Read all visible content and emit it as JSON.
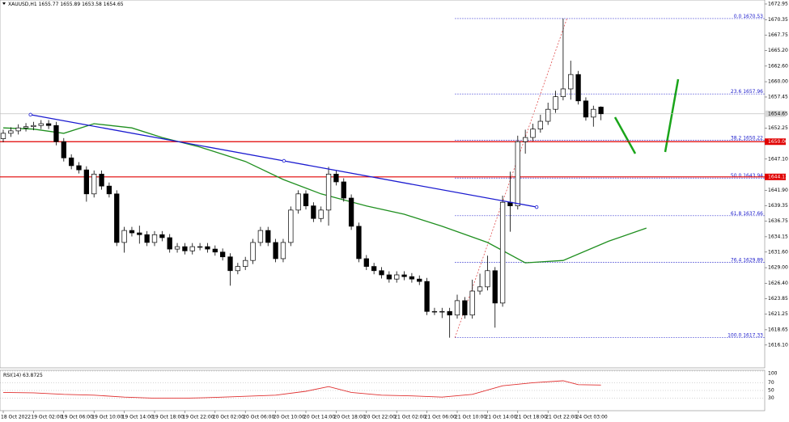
{
  "chart_data": {
    "type": "candlestick",
    "header": {
      "symbol": "XAUUSD,H1",
      "ohlc": [
        1655.77,
        1655.89,
        1653.58,
        1654.65
      ]
    },
    "categories": [
      "18 Oct 2022",
      null,
      null,
      null,
      "19 Oct 02:00",
      null,
      null,
      null,
      "19 Oct 06:00",
      null,
      null,
      null,
      "19 Oct 10:00",
      null,
      null,
      null,
      "19 Oct 14:00",
      null,
      null,
      null,
      "19 Oct 18:00",
      null,
      null,
      null,
      "19 Oct 22:00",
      null,
      null,
      null,
      "20 Oct 02:00",
      null,
      null,
      null,
      "20 Oct 06:00",
      null,
      null,
      null,
      "20 Oct 10:00",
      null,
      null,
      null,
      "20 Oct 14:00",
      null,
      null,
      null,
      "20 Oct 18:00",
      null,
      null,
      null,
      "20 Oct 22:00",
      null,
      null,
      null,
      "21 Oct 02:00",
      null,
      null,
      null,
      "21 Oct 06:00",
      null,
      null,
      null,
      "21 Oct 10:00",
      null,
      null,
      null,
      "21 Oct 14:00",
      null,
      null,
      null,
      "21 Oct 18:00",
      null,
      null,
      null,
      "21 Oct 22:00",
      null,
      null,
      null,
      "24 Oct 03:00",
      null,
      null,
      null
    ],
    "open": [
      1650.5,
      1651.4,
      1651.8,
      1652.3,
      1652.5,
      1652.7,
      1653.0,
      1652.7,
      1650.0,
      1647.3,
      1646.0,
      1645.3,
      1641.3,
      1644.6,
      1642.6,
      1641.3,
      1633.2,
      1635.2,
      1634.8,
      1634.5,
      1633.2,
      1634.5,
      1634.0,
      1632.1,
      1632.5,
      1631.8,
      1632.5,
      1632.5,
      1632.1,
      1631.6,
      1630.8,
      1628.5,
      1629.2,
      1630.2,
      1633.2,
      1635.2,
      1633.2,
      1630.5,
      1633.2,
      1638.6,
      1641.3,
      1639.3,
      1637.2,
      1638.6,
      1644.6,
      1643.3,
      1640.6,
      1635.9,
      1630.5,
      1629.2,
      1628.5,
      1627.8,
      1627.1,
      1627.8,
      1627.5,
      1627.1,
      1626.7,
      1621.7,
      1621.7,
      1621.7,
      1621.1,
      1623.5,
      1621.1,
      1625.1,
      1625.8,
      1628.5,
      1623.1,
      1639.9,
      1639.3,
      1650.0,
      1650.7,
      1652.1,
      1653.4,
      1655.4,
      1657.5,
      1658.8,
      1661.2,
      1656.8,
      1654.1,
      1655.77
    ],
    "high": [
      1652.0,
      1652.4,
      1652.9,
      1653.1,
      1653.3,
      1653.6,
      1653.6,
      1653.3,
      1650.6,
      1647.9,
      1646.6,
      1645.9,
      1645.2,
      1645.2,
      1643.2,
      1641.9,
      1635.8,
      1635.8,
      1636.0,
      1635.1,
      1635.1,
      1635.1,
      1634.6,
      1633.1,
      1633.1,
      1633.1,
      1633.1,
      1633.1,
      1632.7,
      1632.2,
      1631.4,
      1629.8,
      1630.8,
      1633.8,
      1635.8,
      1635.8,
      1633.8,
      1633.8,
      1639.2,
      1641.9,
      1641.9,
      1639.9,
      1639.2,
      1645.8,
      1645.2,
      1643.9,
      1641.2,
      1636.5,
      1631.1,
      1629.8,
      1629.1,
      1628.4,
      1628.4,
      1628.4,
      1628.1,
      1627.7,
      1627.3,
      1622.3,
      1622.3,
      1622.3,
      1624.5,
      1624.1,
      1627.0,
      1628.0,
      1631.0,
      1629.1,
      1641.0,
      1645.0,
      1651.0,
      1652.0,
      1653.0,
      1654.5,
      1656.5,
      1658.5,
      1670.53,
      1663.5,
      1661.8,
      1657.4,
      1656.0,
      1655.89
    ],
    "low": [
      1649.9,
      1650.8,
      1651.2,
      1651.7,
      1651.9,
      1652.1,
      1652.1,
      1649.4,
      1646.7,
      1645.4,
      1644.7,
      1640.0,
      1640.7,
      1642.0,
      1640.7,
      1632.6,
      1631.5,
      1634.2,
      1633.0,
      1632.6,
      1632.6,
      1633.4,
      1631.5,
      1631.5,
      1631.2,
      1631.2,
      1631.9,
      1631.5,
      1631.0,
      1630.2,
      1626.0,
      1627.9,
      1628.6,
      1629.6,
      1632.6,
      1632.6,
      1629.9,
      1629.9,
      1632.6,
      1638.0,
      1638.7,
      1636.6,
      1636.6,
      1636.0,
      1642.7,
      1640.0,
      1635.3,
      1629.9,
      1628.6,
      1627.9,
      1627.2,
      1626.5,
      1626.5,
      1626.9,
      1626.5,
      1626.1,
      1621.1,
      1621.1,
      1620.6,
      1617.33,
      1620.5,
      1620.5,
      1620.5,
      1624.5,
      1625.2,
      1619.0,
      1622.5,
      1635.0,
      1638.7,
      1648.0,
      1650.1,
      1651.5,
      1652.8,
      1654.8,
      1656.9,
      1657.0,
      1656.2,
      1653.5,
      1652.5,
      1653.58
    ],
    "close": [
      1651.4,
      1651.8,
      1652.3,
      1652.5,
      1652.7,
      1653.0,
      1652.7,
      1650.0,
      1647.3,
      1646.0,
      1645.3,
      1641.3,
      1644.6,
      1642.6,
      1641.3,
      1633.2,
      1635.2,
      1634.8,
      1634.5,
      1633.2,
      1634.5,
      1634.0,
      1632.1,
      1632.5,
      1631.8,
      1632.5,
      1632.5,
      1632.1,
      1631.6,
      1630.8,
      1628.5,
      1629.2,
      1630.2,
      1633.2,
      1635.2,
      1633.2,
      1630.5,
      1633.2,
      1638.6,
      1641.3,
      1639.3,
      1637.2,
      1638.6,
      1644.6,
      1643.3,
      1640.6,
      1635.9,
      1630.5,
      1629.2,
      1628.5,
      1627.8,
      1627.1,
      1627.8,
      1627.5,
      1627.1,
      1626.7,
      1621.7,
      1621.7,
      1621.7,
      1621.1,
      1623.5,
      1621.1,
      1625.1,
      1625.8,
      1628.5,
      1623.1,
      1639.9,
      1639.3,
      1650.0,
      1650.7,
      1652.1,
      1653.4,
      1655.4,
      1657.5,
      1658.8,
      1661.2,
      1656.8,
      1654.1,
      1655.4,
      1654.65
    ],
    "color_up": "#ffffff",
    "color_down": "#000000",
    "ylim": [
      1612.3,
      1673.62
    ],
    "yticks": [
      1672.95,
      1670.35,
      1667.75,
      {
        "value": 1665.2,
        "label": "1665.20"
      },
      {
        "value": 1662.6,
        "label": "1662.60"
      },
      {
        "value": 1660,
        "label": "1660.00"
      },
      1657.45,
      1652.25,
      {
        "value": 1647.1,
        "label": "1647.10"
      },
      {
        "value": 1641.9,
        "label": "1641.90"
      },
      1639.35,
      1636.75,
      1634.15,
      {
        "value": 1631.6,
        "label": "1631.60"
      },
      {
        "value": 1629,
        "label": "1629.00"
      },
      {
        "value": 1626.4,
        "label": "1626.40"
      },
      1623.85,
      1621.25,
      1618.65,
      {
        "value": 1616.1,
        "label": "1616.10"
      }
    ],
    "ma": {
      "color": "#1f8f1f",
      "x": [
        0,
        4,
        8,
        12,
        17,
        21,
        26,
        32,
        37,
        42,
        48,
        53,
        58,
        64,
        69,
        74,
        80,
        85
      ],
      "values": [
        1652.3,
        1652.1,
        1651.4,
        1653.0,
        1652.3,
        1650.7,
        1649.1,
        1646.7,
        1643.7,
        1641.3,
        1639.3,
        1637.9,
        1635.9,
        1633.2,
        1629.8,
        1630.2,
        1633.4,
        1635.6
      ]
    },
    "trendline": {
      "color": "#1a1ad0",
      "x": [
        3.6,
        37.1,
        70.5
      ],
      "values": [
        1654.5,
        1646.8,
        1639.1
      ]
    },
    "levels": {
      "color": "#e00000",
      "values": [
        {
          "value": 1650,
          "label": "1650.00"
        },
        1644.13
      ]
    },
    "fib": {
      "color": "#2020cc",
      "line_color": "#e05050",
      "x": [
        59.7,
        74.5
      ],
      "levels": [
        {
          "level": {
            "value": 0,
            "label": "0.0"
          },
          "price": 1670.53
        },
        {
          "level": 23.6,
          "price": 1657.96
        },
        {
          "level": 38.2,
          "price": 1650.22
        },
        {
          "level": {
            "value": 50,
            "label": "50.0"
          },
          "price": 1643.94
        },
        {
          "level": 61.8,
          "price": 1637.66
        },
        {
          "level": 76.4,
          "price": 1629.89
        },
        {
          "level": {
            "value": 100,
            "label": "100.0"
          },
          "price": 1617.33
        }
      ]
    },
    "rsi": {
      "name": "RSI(14)",
      "color": "#e03030",
      "x": [
        0,
        4,
        8,
        12,
        16,
        20,
        24,
        28,
        32,
        36,
        40,
        43,
        46,
        50,
        54,
        58,
        62,
        66,
        70,
        74,
        76,
        79
      ],
      "values": [
        45,
        44,
        40,
        38,
        33,
        30,
        30,
        32,
        35,
        38,
        48,
        60,
        45,
        38,
        36,
        33,
        40,
        62,
        70,
        75,
        65,
        63.8725
      ],
      "ylim": [
        0,
        100
      ],
      "yticks": [
        30,
        50,
        70,
        100
      ]
    }
  }
}
